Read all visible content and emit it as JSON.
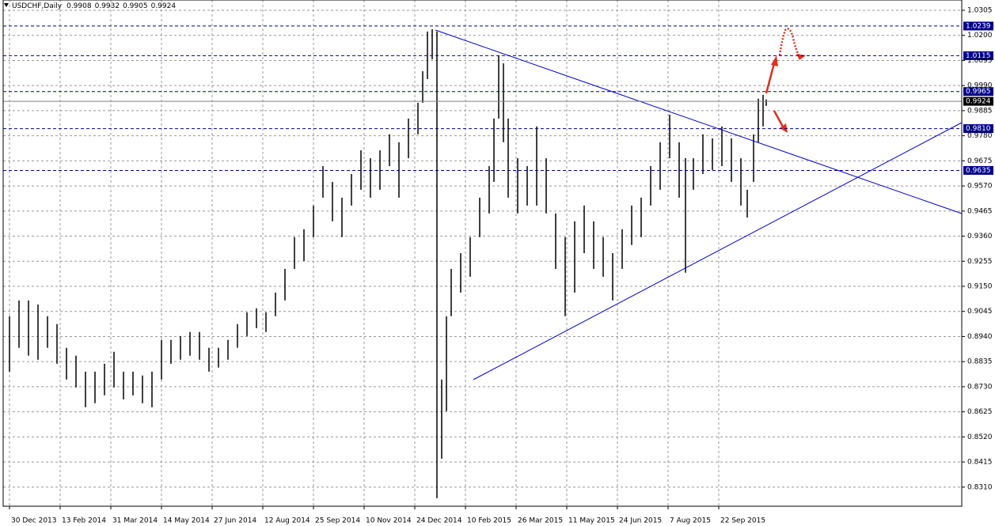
{
  "chart_data": {
    "type": "ohlc",
    "symbol": "USDCHF,Daily",
    "ohlc": [
      0.9908,
      0.9932,
      0.9905,
      0.9924
    ],
    "color": "#000000",
    "x": [
      0,
      6,
      12,
      18,
      24,
      30,
      36,
      42,
      48,
      54,
      60,
      66,
      72,
      78,
      84,
      90,
      96,
      102,
      108,
      114,
      120,
      126,
      132,
      138,
      144,
      150,
      156,
      162,
      168,
      174,
      180,
      186,
      192,
      198,
      204,
      210,
      216,
      222,
      228,
      234,
      240,
      246,
      252,
      258,
      261,
      264,
      267,
      270,
      273,
      276,
      279,
      285,
      291,
      297,
      303,
      306,
      309,
      312,
      315,
      321,
      327,
      333,
      339,
      345,
      351,
      357,
      363,
      369,
      375,
      381,
      387,
      393,
      399,
      405,
      411,
      417,
      423,
      427,
      432,
      438,
      444,
      450,
      456,
      462,
      466,
      470,
      473,
      476,
      478
    ],
    "high": [
      0.9025,
      0.9091,
      0.9091,
      0.9074,
      0.9025,
      0.8992,
      0.8893,
      0.886,
      0.8793,
      0.8793,
      0.8826,
      0.8876,
      0.8793,
      0.8793,
      0.8777,
      0.8793,
      0.8926,
      0.8926,
      0.8942,
      0.8959,
      0.8959,
      0.8893,
      0.8893,
      0.8926,
      0.8992,
      0.9041,
      0.9058,
      0.9041,
      0.9124,
      0.9223,
      0.9356,
      0.9389,
      0.9488,
      0.9653,
      0.9587,
      0.9521,
      0.962,
      0.9719,
      0.9686,
      0.9719,
      0.9786,
      0.9753,
      0.9852,
      0.9918,
      1.005,
      1.0216,
      1.0226,
      1.0216,
      0.876,
      0.9025,
      0.9223,
      0.9289,
      0.9356,
      0.9521,
      0.9653,
      0.9852,
      1.0116,
      1.0083,
      0.9852,
      0.9686,
      0.9653,
      0.9819,
      0.9686,
      0.9455,
      0.9356,
      0.9422,
      0.9488,
      0.9422,
      0.9356,
      0.9289,
      0.9389,
      0.9488,
      0.9521,
      0.9653,
      0.9753,
      0.9868,
      0.9753,
      0.9686,
      0.9686,
      0.9786,
      0.9769,
      0.9819,
      0.9769,
      0.9686,
      0.9554,
      0.9786,
      0.9935,
      0.9951,
      0.9932
    ],
    "low": [
      0.8793,
      0.8893,
      0.886,
      0.8843,
      0.8893,
      0.8826,
      0.876,
      0.8727,
      0.8644,
      0.8661,
      0.8694,
      0.8727,
      0.8677,
      0.8694,
      0.8661,
      0.8644,
      0.876,
      0.8826,
      0.8843,
      0.886,
      0.8843,
      0.8793,
      0.881,
      0.8843,
      0.8893,
      0.8942,
      0.8975,
      0.8959,
      0.9025,
      0.9091,
      0.9223,
      0.9256,
      0.9356,
      0.9521,
      0.9422,
      0.9356,
      0.9488,
      0.9554,
      0.9521,
      0.9554,
      0.9653,
      0.9521,
      0.9686,
      0.9786,
      0.9918,
      1.0017,
      1.01,
      0.8264,
      0.8429,
      0.8628,
      0.9025,
      0.9124,
      0.919,
      0.9356,
      0.9455,
      0.9587,
      0.9852,
      0.9753,
      0.9521,
      0.9455,
      0.9488,
      0.9488,
      0.9455,
      0.9223,
      0.9025,
      0.9124,
      0.9289,
      0.9223,
      0.919,
      0.9091,
      0.9223,
      0.9323,
      0.9356,
      0.9488,
      0.9554,
      0.9686,
      0.9521,
      0.9207,
      0.9554,
      0.962,
      0.9637,
      0.9653,
      0.9587,
      0.9488,
      0.9438,
      0.9587,
      0.9753,
      0.9819,
      0.9905
    ],
    "xlim": [
      -4,
      601.5
    ],
    "ylim": [
      0.823,
      1.0348
    ],
    "xticks": [
      {
        "value": 0,
        "label": "30 Dec 2013"
      },
      {
        "value": 32,
        "label": "13 Feb 2014"
      },
      {
        "value": 64,
        "label": "31 Mar 2014"
      },
      {
        "value": 96,
        "label": "14 May 2014"
      },
      {
        "value": 128,
        "label": "27 Jun 2014"
      },
      {
        "value": 160,
        "label": "12 Aug 2014"
      },
      {
        "value": 192,
        "label": "25 Sep 2014"
      },
      {
        "value": 224,
        "label": "10 Nov 2014"
      },
      {
        "value": 256,
        "label": "24 Dec 2014"
      },
      {
        "value": 288,
        "label": "10 Feb 2015"
      },
      {
        "value": 320,
        "label": "26 Mar 2015"
      },
      {
        "value": 352,
        "label": "11 May 2015"
      },
      {
        "value": 384,
        "label": "24 Jun 2015"
      },
      {
        "value": 416,
        "label": "7 Aug 2015"
      },
      {
        "value": 448,
        "label": "22 Sep 2015"
      }
    ],
    "yticks": [
      1.0305,
      {
        "value": 1.02,
        "label": "1.0200"
      },
      1.0095,
      {
        "value": 0.999,
        "label": "0.9990"
      },
      0.9885,
      {
        "value": 0.978,
        "label": "0.9780"
      },
      0.9675,
      {
        "value": 0.957,
        "label": "0.9570"
      },
      0.9465,
      {
        "value": 0.936,
        "label": "0.9360"
      },
      0.9255,
      {
        "value": 0.915,
        "label": "0.9150"
      },
      0.9045,
      {
        "value": 0.894,
        "label": "0.8940"
      },
      0.8835,
      {
        "value": 0.873,
        "label": "0.8730"
      },
      0.8625,
      {
        "value": 0.852,
        "label": "0.8520"
      },
      0.8415,
      {
        "value": 0.831,
        "label": "0.8310"
      }
    ],
    "grid": true,
    "levels": [
      1.0239,
      1.0115,
      0.9965,
      {
        "value": 0.981,
        "label": "0.9810"
      },
      0.9635
    ],
    "levels_color": "#00008b",
    "last_price": 0.9924,
    "last_price_color": "#808080"
  }
}
